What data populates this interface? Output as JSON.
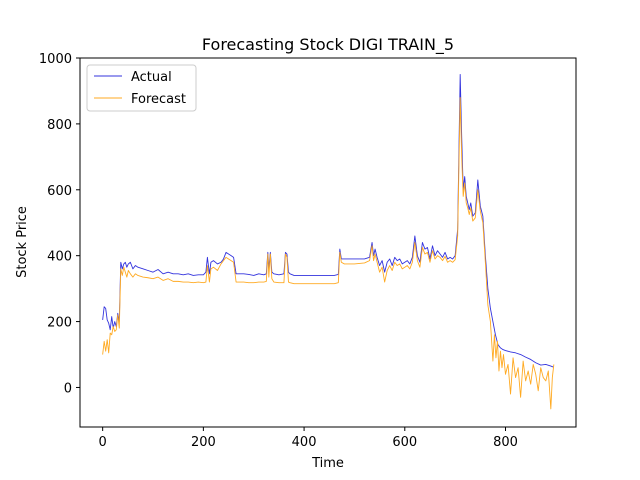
{
  "chart_data": {
    "type": "line",
    "title": "Forecasting Stock DIGI TRAIN_5",
    "xlabel": "Time",
    "ylabel": "Stock Price",
    "xlim": [
      -45,
      940
    ],
    "ylim": [
      -120,
      1000
    ],
    "xticks": [
      0,
      200,
      400,
      600,
      800
    ],
    "yticks": [
      0,
      200,
      400,
      600,
      800,
      1000
    ],
    "grid": false,
    "legend_position": "top-left",
    "series": [
      {
        "name": "Actual",
        "color": "#3333dd",
        "x": [
          0,
          3,
          6,
          9,
          12,
          15,
          18,
          21,
          24,
          27,
          30,
          33,
          36,
          39,
          42,
          45,
          48,
          51,
          55,
          60,
          65,
          70,
          80,
          90,
          100,
          110,
          120,
          130,
          140,
          150,
          160,
          170,
          180,
          190,
          200,
          205,
          208,
          212,
          215,
          220,
          228,
          235,
          240,
          245,
          250,
          255,
          260,
          265,
          270,
          280,
          290,
          300,
          310,
          320,
          325,
          328,
          330,
          333,
          336,
          340,
          350,
          360,
          363,
          366,
          369,
          372,
          380,
          400,
          420,
          440,
          460,
          468,
          471,
          474,
          480,
          500,
          520,
          530,
          535,
          538,
          541,
          545,
          550,
          555,
          560,
          565,
          570,
          575,
          580,
          585,
          590,
          595,
          600,
          605,
          610,
          615,
          620,
          625,
          630,
          635,
          640,
          645,
          650,
          655,
          660,
          665,
          670,
          675,
          680,
          685,
          690,
          695,
          700,
          705,
          710,
          713,
          716,
          719,
          722,
          725,
          728,
          731,
          735,
          740,
          745,
          750,
          755,
          760,
          765,
          770,
          775,
          780,
          785,
          790,
          795,
          800,
          810,
          820,
          830,
          840,
          850,
          860,
          870,
          880,
          890,
          895
        ],
        "y": [
          205,
          245,
          240,
          205,
          195,
          175,
          215,
          180,
          200,
          185,
          225,
          200,
          380,
          360,
          375,
          380,
          365,
          375,
          380,
          360,
          370,
          365,
          360,
          355,
          350,
          358,
          345,
          350,
          345,
          345,
          342,
          345,
          340,
          342,
          342,
          350,
          395,
          345,
          380,
          385,
          375,
          380,
          390,
          410,
          405,
          400,
          395,
          345,
          345,
          345,
          343,
          340,
          345,
          342,
          345,
          410,
          360,
          410,
          350,
          345,
          342,
          345,
          410,
          405,
          350,
          345,
          340,
          340,
          340,
          340,
          340,
          343,
          420,
          390,
          390,
          390,
          390,
          395,
          440,
          400,
          420,
          395,
          370,
          385,
          350,
          380,
          390,
          370,
          395,
          385,
          390,
          375,
          380,
          385,
          375,
          395,
          460,
          400,
          380,
          440,
          420,
          425,
          390,
          430,
          400,
          415,
          405,
          395,
          410,
          390,
          395,
          390,
          400,
          480,
          950,
          760,
          600,
          640,
          580,
          560,
          540,
          560,
          520,
          530,
          630,
          550,
          520,
          400,
          300,
          240,
          200,
          160,
          130,
          120,
          115,
          112,
          108,
          105,
          100,
          92,
          85,
          75,
          68,
          70,
          65,
          62
        ]
      },
      {
        "name": "Forecast",
        "color": "#ffaa22",
        "x": [
          0,
          3,
          6,
          9,
          12,
          15,
          18,
          21,
          24,
          27,
          30,
          33,
          36,
          39,
          42,
          45,
          48,
          51,
          55,
          60,
          65,
          70,
          80,
          90,
          100,
          110,
          120,
          130,
          140,
          150,
          160,
          170,
          180,
          190,
          200,
          205,
          208,
          212,
          215,
          220,
          228,
          235,
          240,
          245,
          250,
          255,
          260,
          265,
          270,
          280,
          290,
          300,
          310,
          320,
          325,
          328,
          330,
          333,
          336,
          340,
          350,
          360,
          363,
          366,
          369,
          372,
          380,
          400,
          420,
          440,
          460,
          468,
          471,
          474,
          480,
          500,
          520,
          530,
          535,
          538,
          541,
          545,
          550,
          555,
          560,
          565,
          570,
          575,
          580,
          585,
          590,
          595,
          600,
          605,
          610,
          615,
          620,
          625,
          630,
          635,
          640,
          645,
          650,
          655,
          660,
          665,
          670,
          675,
          680,
          685,
          690,
          695,
          700,
          705,
          710,
          713,
          716,
          719,
          722,
          725,
          728,
          731,
          735,
          740,
          745,
          750,
          755,
          760,
          765,
          770,
          775,
          778,
          781,
          784,
          787,
          790,
          793,
          796,
          800,
          805,
          810,
          815,
          820,
          825,
          830,
          835,
          840,
          845,
          850,
          855,
          860,
          865,
          870,
          875,
          880,
          885,
          890,
          893,
          896
        ],
        "y": [
          100,
          140,
          110,
          145,
          105,
          165,
          160,
          185,
          170,
          175,
          220,
          180,
          360,
          340,
          365,
          350,
          335,
          355,
          345,
          335,
          345,
          340,
          335,
          333,
          330,
          335,
          325,
          330,
          322,
          322,
          320,
          320,
          318,
          320,
          318,
          320,
          370,
          320,
          360,
          365,
          355,
          375,
          385,
          395,
          390,
          385,
          380,
          320,
          320,
          320,
          318,
          318,
          320,
          320,
          322,
          405,
          335,
          405,
          330,
          320,
          318,
          318,
          405,
          395,
          320,
          318,
          315,
          315,
          315,
          315,
          315,
          318,
          410,
          380,
          375,
          375,
          378,
          385,
          430,
          385,
          405,
          380,
          350,
          365,
          320,
          355,
          370,
          355,
          380,
          370,
          375,
          360,
          365,
          370,
          360,
          380,
          440,
          385,
          365,
          425,
          405,
          410,
          380,
          415,
          390,
          400,
          395,
          385,
          398,
          380,
          385,
          380,
          388,
          460,
          880,
          700,
          580,
          620,
          560,
          545,
          525,
          545,
          505,
          515,
          600,
          535,
          500,
          380,
          250,
          200,
          80,
          160,
          90,
          140,
          50,
          110,
          60,
          100,
          40,
          70,
          -20,
          90,
          30,
          60,
          -30,
          80,
          20,
          50,
          10,
          70,
          40,
          -10,
          60,
          30,
          20,
          50,
          -65,
          30,
          70
        ]
      }
    ]
  }
}
